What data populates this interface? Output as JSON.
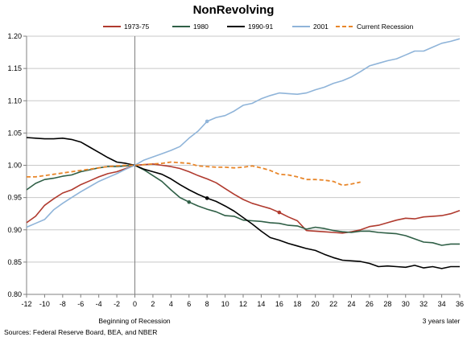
{
  "chart_data": {
    "type": "line",
    "title": "NonRevolving",
    "x_axis": {
      "range": [
        -12,
        36
      ],
      "ticks": [
        -12,
        -10,
        -8,
        -6,
        -4,
        -2,
        0,
        2,
        4,
        6,
        8,
        10,
        12,
        14,
        16,
        18,
        20,
        22,
        24,
        26,
        28,
        30,
        32,
        34,
        36
      ],
      "start_label": "Beginning of Recession",
      "end_label": "3 years later"
    },
    "y_axis": {
      "range": [
        0.8,
        1.2
      ],
      "ticks": [
        "0.80",
        "0.85",
        "0.90",
        "0.95",
        "1.00",
        "1.05",
        "1.10",
        "1.15",
        "1.20"
      ],
      "gridlines": true
    },
    "legend_position": "top",
    "source": "Sources: Federal Reserve Board, BEA, and NBER",
    "series": [
      {
        "name": "1973-75",
        "color": "#b03a2e",
        "dash": "solid",
        "marker_x": 16,
        "x": [
          -12,
          -11,
          -10,
          -9,
          -8,
          -7,
          -6,
          -5,
          -4,
          -3,
          -2,
          -1,
          0,
          1,
          2,
          3,
          4,
          5,
          6,
          7,
          8,
          9,
          10,
          11,
          12,
          13,
          14,
          15,
          16,
          17,
          18,
          19,
          20,
          21,
          22,
          23,
          24,
          25,
          26,
          27,
          28,
          29,
          30,
          31,
          32,
          33,
          34,
          35,
          36
        ],
        "y": [
          0.911,
          0.921,
          0.938,
          0.948,
          0.957,
          0.962,
          0.97,
          0.976,
          0.982,
          0.987,
          0.99,
          0.995,
          1.0,
          1.001,
          1.002,
          1.0,
          0.998,
          0.995,
          0.99,
          0.984,
          0.979,
          0.973,
          0.964,
          0.955,
          0.947,
          0.941,
          0.937,
          0.933,
          0.927,
          0.92,
          0.914,
          0.899,
          0.898,
          0.897,
          0.896,
          0.895,
          0.897,
          0.9,
          0.905,
          0.907,
          0.911,
          0.915,
          0.918,
          0.917,
          0.92,
          0.921,
          0.922,
          0.925,
          0.93
        ]
      },
      {
        "name": "1980",
        "color": "#2f5f46",
        "dash": "solid",
        "marker_x": 6,
        "x": [
          -12,
          -11,
          -10,
          -9,
          -8,
          -7,
          -6,
          -5,
          -4,
          -3,
          -2,
          -1,
          0,
          1,
          2,
          3,
          4,
          5,
          6,
          7,
          8,
          9,
          10,
          11,
          12,
          13,
          14,
          15,
          16,
          17,
          18,
          19,
          20,
          21,
          22,
          23,
          24,
          25,
          26,
          27,
          28,
          29,
          30,
          31,
          32,
          33,
          34,
          35,
          36
        ],
        "y": [
          0.962,
          0.972,
          0.978,
          0.98,
          0.983,
          0.985,
          0.99,
          0.993,
          0.996,
          0.998,
          0.998,
          0.999,
          1.0,
          0.993,
          0.984,
          0.975,
          0.962,
          0.95,
          0.943,
          0.937,
          0.932,
          0.928,
          0.922,
          0.921,
          0.915,
          0.914,
          0.913,
          0.911,
          0.91,
          0.907,
          0.906,
          0.901,
          0.904,
          0.902,
          0.899,
          0.897,
          0.896,
          0.898,
          0.898,
          0.896,
          0.895,
          0.894,
          0.891,
          0.886,
          0.881,
          0.88,
          0.876,
          0.878,
          0.878
        ]
      },
      {
        "name": "1990-91",
        "color": "#000000",
        "dash": "solid",
        "marker_x": 8,
        "x": [
          -12,
          -11,
          -10,
          -9,
          -8,
          -7,
          -6,
          -5,
          -4,
          -3,
          -2,
          -1,
          0,
          1,
          2,
          3,
          4,
          5,
          6,
          7,
          8,
          9,
          10,
          11,
          12,
          13,
          14,
          15,
          16,
          17,
          18,
          19,
          20,
          21,
          22,
          23,
          24,
          25,
          26,
          27,
          28,
          29,
          30,
          31,
          32,
          33,
          34,
          35,
          36
        ],
        "y": [
          1.043,
          1.042,
          1.041,
          1.041,
          1.042,
          1.04,
          1.036,
          1.028,
          1.02,
          1.012,
          1.005,
          1.003,
          1.0,
          0.994,
          0.99,
          0.986,
          0.979,
          0.97,
          0.962,
          0.955,
          0.949,
          0.944,
          0.937,
          0.929,
          0.919,
          0.909,
          0.898,
          0.888,
          0.884,
          0.879,
          0.875,
          0.871,
          0.868,
          0.862,
          0.857,
          0.853,
          0.852,
          0.851,
          0.848,
          0.843,
          0.844,
          0.843,
          0.842,
          0.845,
          0.841,
          0.843,
          0.84,
          0.843,
          0.843
        ]
      },
      {
        "name": "2001",
        "color": "#8fb4d9",
        "dash": "solid",
        "marker_x": 8,
        "x": [
          -12,
          -11,
          -10,
          -9,
          -8,
          -7,
          -6,
          -5,
          -4,
          -3,
          -2,
          -1,
          0,
          1,
          2,
          3,
          4,
          5,
          6,
          7,
          8,
          9,
          10,
          11,
          12,
          13,
          14,
          15,
          16,
          17,
          18,
          19,
          20,
          21,
          22,
          23,
          24,
          25,
          26,
          27,
          28,
          29,
          30,
          31,
          32,
          33,
          34,
          35,
          36
        ],
        "y": [
          0.904,
          0.91,
          0.916,
          0.931,
          0.941,
          0.95,
          0.959,
          0.967,
          0.975,
          0.981,
          0.987,
          0.994,
          1.0,
          1.008,
          1.013,
          1.018,
          1.023,
          1.029,
          1.042,
          1.053,
          1.068,
          1.074,
          1.077,
          1.084,
          1.093,
          1.096,
          1.103,
          1.108,
          1.112,
          1.111,
          1.11,
          1.112,
          1.117,
          1.121,
          1.127,
          1.131,
          1.137,
          1.145,
          1.154,
          1.158,
          1.162,
          1.165,
          1.171,
          1.177,
          1.177,
          1.183,
          1.189,
          1.192,
          1.196
        ]
      },
      {
        "name": "Current Recession",
        "color": "#e8862a",
        "dash": "dashed",
        "x": [
          -12,
          -11,
          -10,
          -9,
          -8,
          -7,
          -6,
          -5,
          -4,
          -3,
          -2,
          -1,
          0,
          1,
          2,
          3,
          4,
          5,
          6,
          7,
          8,
          9,
          10,
          11,
          12,
          13,
          14,
          15,
          16,
          17,
          18,
          19,
          20,
          21,
          22,
          23,
          24,
          25
        ],
        "y": [
          0.982,
          0.982,
          0.984,
          0.986,
          0.988,
          0.99,
          0.992,
          0.994,
          0.996,
          0.998,
          0.999,
          1.0,
          1.0,
          1.001,
          1.002,
          1.003,
          1.005,
          1.004,
          1.003,
          0.999,
          0.998,
          0.997,
          0.997,
          0.996,
          0.997,
          0.999,
          0.996,
          0.992,
          0.986,
          0.985,
          0.982,
          0.978,
          0.978,
          0.977,
          0.975,
          0.969,
          0.971,
          0.974
        ]
      }
    ]
  }
}
